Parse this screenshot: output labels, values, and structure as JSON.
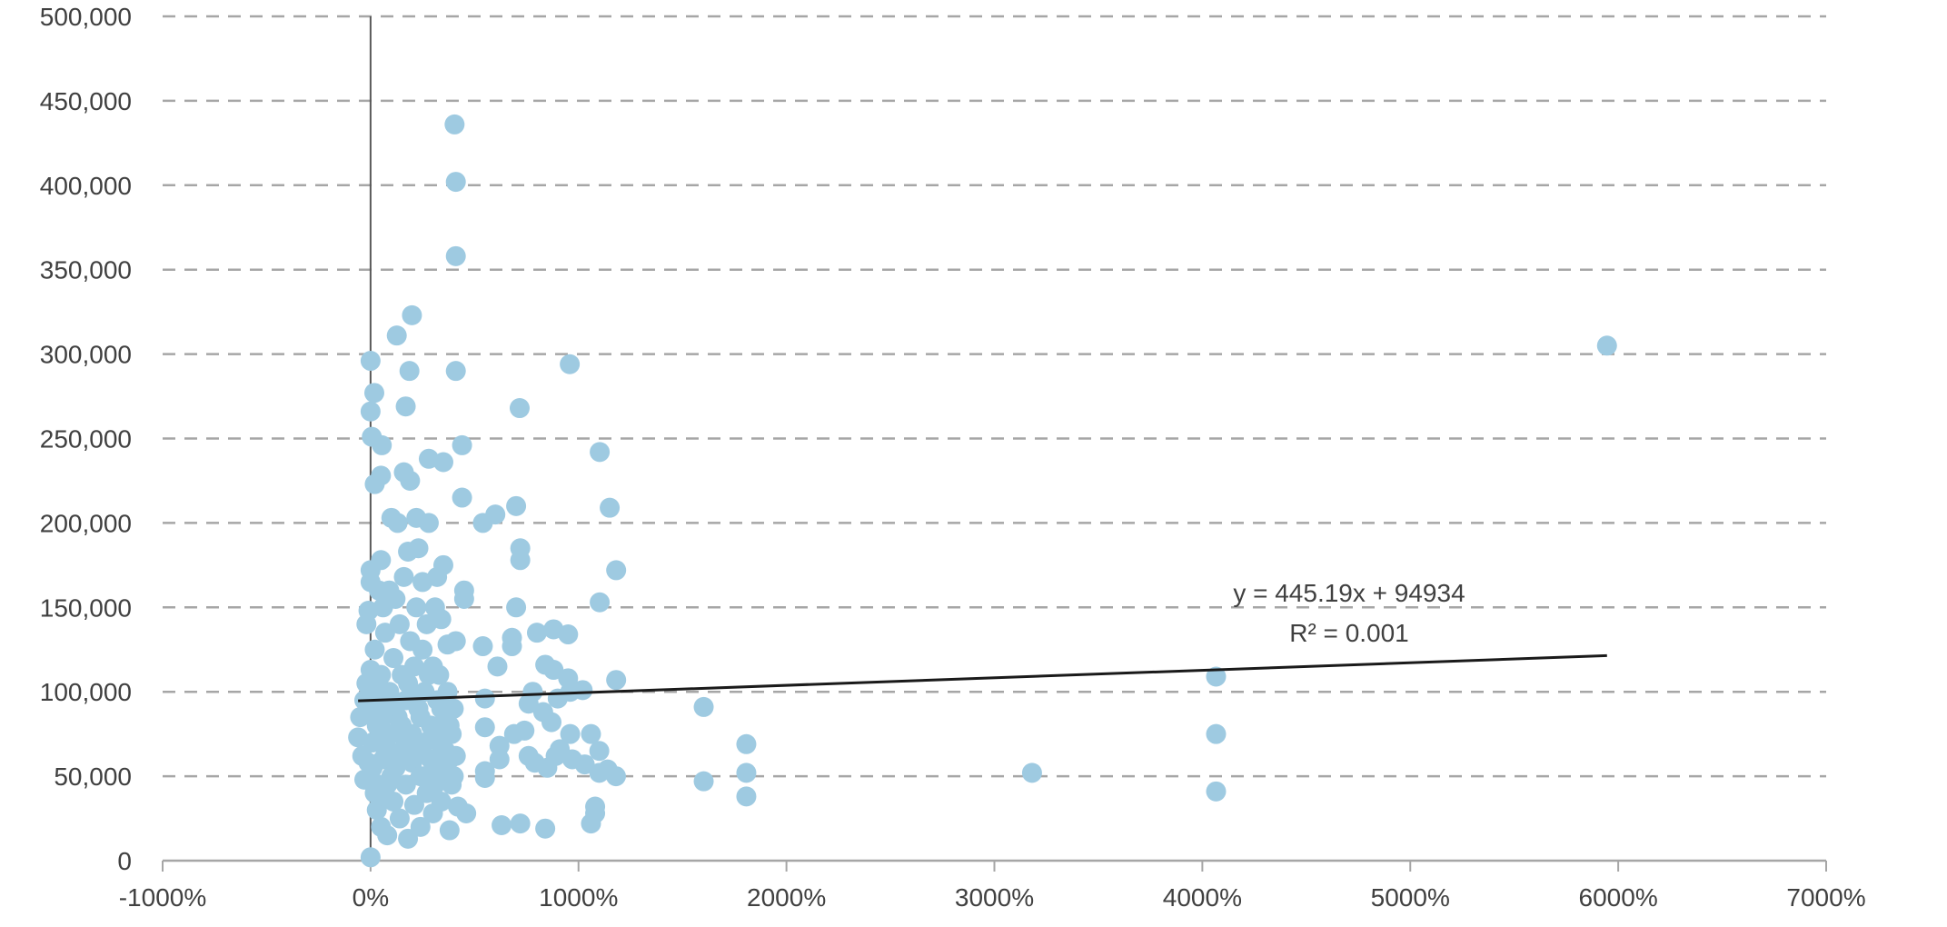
{
  "chart_data": {
    "type": "scatter",
    "title": "",
    "xlabel": "",
    "ylabel": "",
    "xlim": [
      -1000,
      7000
    ],
    "ylim": [
      0,
      500000
    ],
    "x_unit": "%",
    "x_ticks": [
      "-1000%",
      "0%",
      "1000%",
      "2000%",
      "3000%",
      "4000%",
      "5000%",
      "6000%",
      "7000%"
    ],
    "y_ticks": [
      "0",
      "50,000",
      "100,000",
      "150,000",
      "200,000",
      "250,000",
      "300,000",
      "350,000",
      "400,000",
      "450,000",
      "500,000"
    ],
    "grid": "horizontal dashed",
    "marker_color": "#9ecae1",
    "trendline": {
      "type": "linear",
      "equation": "y = 445.19x + 94934",
      "r_squared": "R² = 0.001",
      "slope": 445.19,
      "intercept": 94934,
      "x_range": [
        -60,
        5946
      ],
      "color": "#1a1a1a"
    },
    "points": [
      [
        404,
        436000
      ],
      [
        410,
        402000
      ],
      [
        410,
        358000
      ],
      [
        199,
        323000
      ],
      [
        126,
        311000
      ],
      [
        0,
        296000
      ],
      [
        187,
        290000
      ],
      [
        410,
        290000
      ],
      [
        18,
        277000
      ],
      [
        958,
        294000
      ],
      [
        169,
        269000
      ],
      [
        717,
        268000
      ],
      [
        0,
        266000
      ],
      [
        6,
        251000
      ],
      [
        54,
        246000
      ],
      [
        440,
        246000
      ],
      [
        1102,
        242000
      ],
      [
        5946,
        305000
      ],
      [
        4066,
        109000
      ],
      [
        4066,
        75000
      ],
      [
        4066,
        41000
      ],
      [
        3181,
        52000
      ],
      [
        1807,
        69000
      ],
      [
        1807,
        52000
      ],
      [
        1807,
        38000
      ],
      [
        1602,
        91000
      ],
      [
        1602,
        47000
      ],
      [
        1181,
        172000
      ],
      [
        1181,
        107000
      ],
      [
        1150,
        209000
      ],
      [
        1102,
        153000
      ],
      [
        -60,
        73000
      ],
      [
        -40,
        62000
      ],
      [
        -30,
        48000
      ],
      [
        -20,
        105000
      ],
      [
        -20,
        140000
      ],
      [
        -10,
        148000
      ],
      [
        -10,
        88000
      ],
      [
        0,
        113000
      ],
      [
        0,
        165000
      ],
      [
        0,
        172000
      ],
      [
        0,
        2000
      ],
      [
        10,
        95000
      ],
      [
        10,
        55000
      ],
      [
        20,
        40000
      ],
      [
        20,
        125000
      ],
      [
        20,
        223000
      ],
      [
        30,
        30000
      ],
      [
        30,
        80000
      ],
      [
        40,
        70000
      ],
      [
        40,
        160000
      ],
      [
        50,
        228000
      ],
      [
        50,
        178000
      ],
      [
        50,
        110000
      ],
      [
        50,
        20000
      ],
      [
        60,
        150000
      ],
      [
        60,
        60000
      ],
      [
        70,
        90000
      ],
      [
        70,
        135000
      ],
      [
        80,
        45000
      ],
      [
        80,
        15000
      ],
      [
        90,
        100000
      ],
      [
        90,
        160000
      ],
      [
        100,
        203000
      ],
      [
        100,
        75000
      ],
      [
        110,
        120000
      ],
      [
        110,
        35000
      ],
      [
        120,
        55000
      ],
      [
        120,
        155000
      ],
      [
        130,
        200000
      ],
      [
        130,
        85000
      ],
      [
        140,
        140000
      ],
      [
        140,
        25000
      ],
      [
        150,
        65000
      ],
      [
        150,
        110000
      ],
      [
        160,
        168000
      ],
      [
        160,
        230000
      ],
      [
        170,
        95000
      ],
      [
        170,
        45000
      ],
      [
        180,
        13000
      ],
      [
        180,
        183000
      ],
      [
        190,
        225000
      ],
      [
        190,
        130000
      ],
      [
        200,
        75000
      ],
      [
        200,
        58000
      ],
      [
        210,
        115000
      ],
      [
        210,
        33000
      ],
      [
        220,
        203000
      ],
      [
        220,
        150000
      ],
      [
        230,
        90000
      ],
      [
        230,
        185000
      ],
      [
        240,
        50000
      ],
      [
        240,
        20000
      ],
      [
        250,
        165000
      ],
      [
        250,
        125000
      ],
      [
        260,
        70000
      ],
      [
        260,
        100000
      ],
      [
        270,
        40000
      ],
      [
        270,
        140000
      ],
      [
        280,
        238000
      ],
      [
        280,
        200000
      ],
      [
        290,
        80000
      ],
      [
        290,
        60000
      ],
      [
        300,
        115000
      ],
      [
        300,
        28000
      ],
      [
        310,
        150000
      ],
      [
        310,
        45000
      ],
      [
        320,
        95000
      ],
      [
        320,
        168000
      ],
      [
        330,
        110000
      ],
      [
        330,
        70000
      ],
      [
        340,
        143000
      ],
      [
        340,
        35000
      ],
      [
        350,
        236000
      ],
      [
        350,
        175000
      ],
      [
        360,
        85000
      ],
      [
        360,
        52000
      ],
      [
        370,
        128000
      ],
      [
        370,
        100000
      ],
      [
        380,
        60000
      ],
      [
        380,
        18000
      ],
      [
        390,
        75000
      ],
      [
        390,
        45000
      ],
      [
        400,
        90000
      ],
      [
        410,
        130000
      ],
      [
        410,
        62000
      ],
      [
        420,
        32000
      ],
      [
        440,
        215000
      ],
      [
        450,
        160000
      ],
      [
        450,
        155000
      ],
      [
        460,
        28000
      ],
      [
        -50,
        85000
      ],
      [
        -30,
        95000
      ],
      [
        -10,
        58000
      ],
      [
        10,
        70000
      ],
      [
        30,
        100000
      ],
      [
        40,
        45000
      ],
      [
        60,
        85000
      ],
      [
        70,
        38000
      ],
      [
        90,
        65000
      ],
      [
        100,
        50000
      ],
      [
        110,
        92000
      ],
      [
        130,
        60000
      ],
      [
        150,
        80000
      ],
      [
        170,
        70000
      ],
      [
        180,
        105000
      ],
      [
        200,
        95000
      ],
      [
        220,
        65000
      ],
      [
        240,
        85000
      ],
      [
        260,
        50000
      ],
      [
        280,
        110000
      ],
      [
        300,
        75000
      ],
      [
        320,
        55000
      ],
      [
        340,
        90000
      ],
      [
        360,
        65000
      ],
      [
        380,
        80000
      ],
      [
        400,
        50000
      ],
      [
        540,
        200000
      ],
      [
        540,
        127000
      ],
      [
        550,
        96000
      ],
      [
        550,
        79000
      ],
      [
        550,
        53000
      ],
      [
        550,
        49000
      ],
      [
        600,
        205000
      ],
      [
        610,
        115000
      ],
      [
        620,
        68000
      ],
      [
        620,
        60000
      ],
      [
        630,
        21000
      ],
      [
        680,
        127000
      ],
      [
        680,
        132000
      ],
      [
        690,
        75000
      ],
      [
        700,
        150000
      ],
      [
        700,
        210000
      ],
      [
        720,
        185000
      ],
      [
        720,
        178000
      ],
      [
        720,
        22000
      ],
      [
        740,
        77000
      ],
      [
        760,
        62000
      ],
      [
        760,
        93000
      ],
      [
        780,
        100000
      ],
      [
        790,
        58000
      ],
      [
        800,
        135000
      ],
      [
        830,
        88000
      ],
      [
        840,
        116000
      ],
      [
        840,
        19000
      ],
      [
        850,
        55000
      ],
      [
        870,
        82000
      ],
      [
        880,
        137000
      ],
      [
        880,
        113000
      ],
      [
        890,
        62000
      ],
      [
        900,
        96000
      ],
      [
        910,
        66000
      ],
      [
        950,
        134000
      ],
      [
        950,
        108000
      ],
      [
        960,
        100000
      ],
      [
        960,
        75000
      ],
      [
        970,
        60000
      ],
      [
        1020,
        101000
      ],
      [
        1030,
        57000
      ],
      [
        1060,
        75000
      ],
      [
        1060,
        22000
      ],
      [
        1080,
        32000
      ],
      [
        1080,
        28000
      ],
      [
        1100,
        65000
      ],
      [
        1100,
        52000
      ],
      [
        1140,
        54000
      ],
      [
        1180,
        50000
      ]
    ]
  }
}
